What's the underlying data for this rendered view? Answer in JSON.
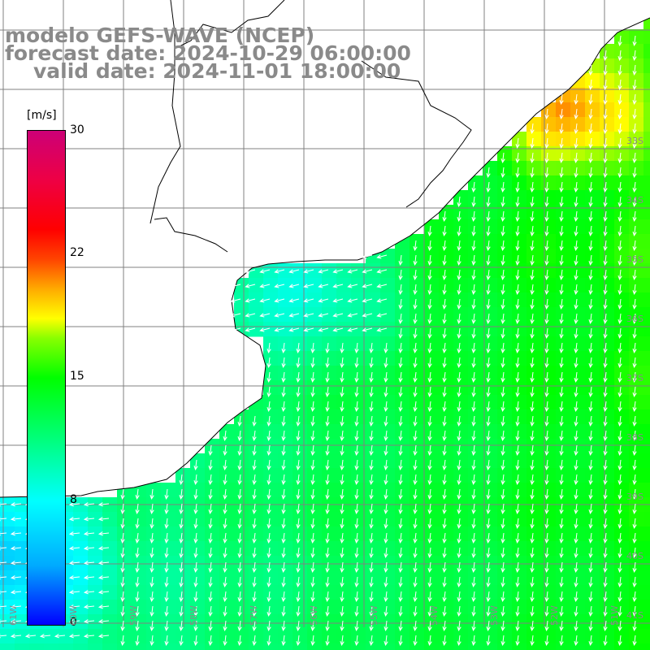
{
  "title": {
    "line1": "modelo GEFS-WAVE (NCEP)",
    "line2": "forecast date: 2024-10-29 06:00:00",
    "line3": "valid date: 2024-11-01 18:00:00"
  },
  "colorbar": {
    "units": "[m/s]",
    "ticks": [
      "30",
      "22",
      "15",
      "8",
      "0"
    ],
    "tick_values": [
      30,
      22,
      15,
      8,
      0
    ],
    "min": 0,
    "max": 30
  },
  "axes": {
    "lon_labels": [
      "61W",
      "60W",
      "59W",
      "58W",
      "57W",
      "56W",
      "55W",
      "54W",
      "53W",
      "52W",
      "51W"
    ],
    "lat_labels": [
      "33S",
      "34S",
      "35S",
      "36S",
      "37S",
      "38S",
      "39S",
      "40S",
      "41S"
    ]
  },
  "colors": {
    "title": "#8a8a8a",
    "coast": "#000000",
    "grid": "#808080",
    "arrows": "#ffffff"
  },
  "arrow_direction": "mostly southward"
}
